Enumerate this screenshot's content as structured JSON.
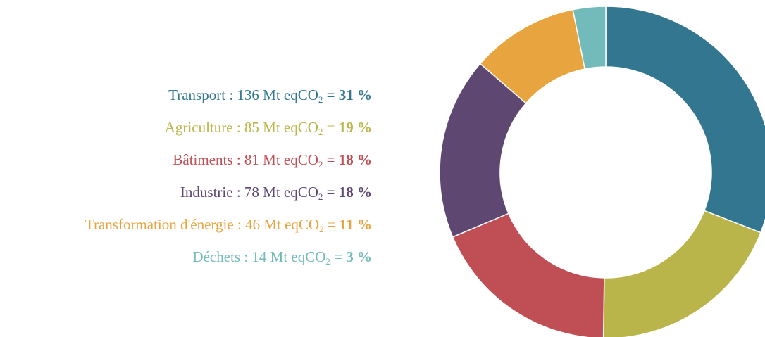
{
  "chart_data": {
    "type": "pie",
    "donut": true,
    "unit": "Mt eqCO",
    "unit_subscript": "2",
    "categories": [
      "Transport",
      "Agriculture",
      "Bâtiments",
      "Industrie",
      "Transformation d'énergie",
      "Déchets"
    ],
    "values": [
      136,
      85,
      81,
      78,
      46,
      14
    ],
    "percent_labels": [
      "31 %",
      "19 %",
      "18 %",
      "18 %",
      "11 %",
      "3 %"
    ],
    "colors": [
      "#327690",
      "#bab54a",
      "#c04f55",
      "#5e4770",
      "#e7a43f",
      "#73bbba"
    ],
    "legend_position": "left"
  }
}
